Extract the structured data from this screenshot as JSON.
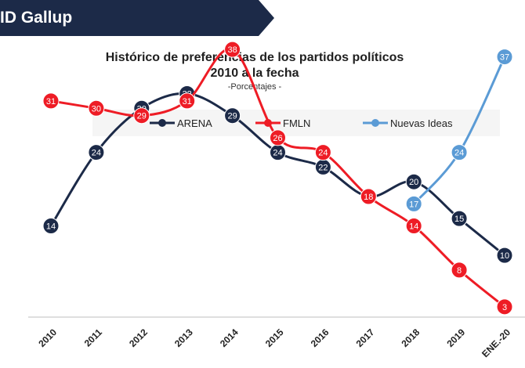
{
  "header": {
    "brand": "ID Gallup"
  },
  "chart_data": {
    "type": "line",
    "title": "Histórico de preferencias de los partidos políticos",
    "title_line2": "2010 a la fecha",
    "subtitle": "-Porcentajes -",
    "categories": [
      "2010",
      "2011",
      "2012",
      "2013",
      "2014",
      "2015",
      "2016",
      "2017",
      "2018",
      "2019",
      "ENE.-20"
    ],
    "legend_position": "top",
    "grid": false,
    "series": [
      {
        "name": "ARENA",
        "color": "#1c2a48",
        "values": [
          14,
          24,
          30,
          32,
          29,
          24,
          22,
          18,
          20,
          15,
          10
        ]
      },
      {
        "name": "FMLN",
        "color": "#ee1c25",
        "values": [
          31,
          30,
          29,
          31,
          38,
          26,
          24,
          18,
          14,
          8,
          3
        ]
      },
      {
        "name": "Nuevas Ideas",
        "color": "#5b9bd5",
        "values": [
          null,
          null,
          null,
          null,
          null,
          null,
          null,
          null,
          17,
          24,
          37
        ]
      }
    ]
  }
}
